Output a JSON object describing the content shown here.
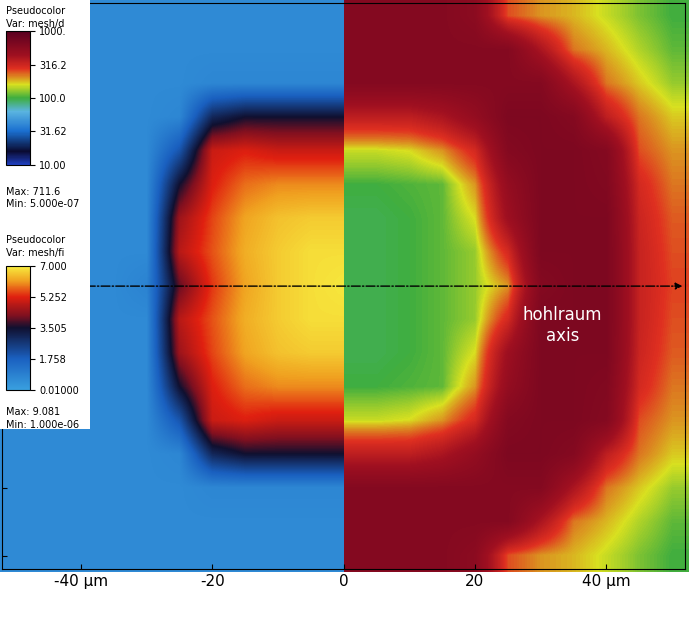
{
  "chart_data": {
    "type": "heatmap",
    "xlim": [
      -52,
      52
    ],
    "ylim": [
      -42,
      42
    ],
    "xticks": [
      {
        "value": -40,
        "label": "-40 µm"
      },
      -20,
      0,
      20,
      {
        "value": 40,
        "label": "40 µm"
      }
    ],
    "yticks": [
      -40,
      -30,
      -20,
      -10,
      0,
      10,
      20,
      30,
      40
    ],
    "tick_labels": "x",
    "annotations": [
      "hohlraum\naxis"
    ],
    "fields": [
      {
        "title": "Pseudocolor",
        "variable": "Var: mesh/d",
        "max": "Max: 711.6",
        "min": "Min: 5.000e-07",
        "log": true,
        "x": [
          0,
          5,
          10,
          15,
          20,
          25,
          30,
          35,
          40,
          45,
          50
        ],
        "y": [
          40,
          35,
          30,
          25,
          20,
          15,
          10,
          5,
          0,
          -5,
          -10,
          -15,
          -20,
          -25,
          -30,
          -35,
          -40
        ],
        "cells": [
          [
            600,
            600,
            600,
            600,
            550,
            250,
            200,
            180,
            150,
            120,
            100
          ],
          [
            600,
            600,
            600,
            600,
            600,
            600,
            400,
            220,
            180,
            140,
            110
          ],
          [
            600,
            600,
            600,
            600,
            600,
            600,
            600,
            400,
            220,
            170,
            130
          ],
          [
            350,
            350,
            350,
            400,
            500,
            650,
            650,
            600,
            350,
            220,
            170
          ],
          [
            150,
            150,
            160,
            200,
            300,
            600,
            650,
            650,
            600,
            250,
            200
          ],
          [
            100,
            100,
            105,
            110,
            200,
            500,
            650,
            650,
            620,
            300,
            220
          ],
          [
            95,
            95,
            100,
            110,
            160,
            450,
            650,
            650,
            650,
            320,
            240
          ],
          [
            95,
            95,
            100,
            110,
            130,
            300,
            650,
            650,
            650,
            330,
            250
          ],
          [
            95,
            95,
            100,
            110,
            130,
            200,
            600,
            650,
            650,
            330,
            260
          ],
          [
            95,
            95,
            100,
            110,
            130,
            300,
            650,
            650,
            650,
            330,
            250
          ],
          [
            95,
            95,
            100,
            110,
            160,
            450,
            650,
            650,
            650,
            320,
            240
          ],
          [
            100,
            100,
            105,
            110,
            200,
            500,
            650,
            650,
            620,
            300,
            220
          ],
          [
            150,
            150,
            160,
            200,
            300,
            600,
            650,
            650,
            600,
            250,
            200
          ],
          [
            350,
            350,
            350,
            400,
            500,
            650,
            650,
            600,
            350,
            220,
            170
          ],
          [
            600,
            600,
            600,
            600,
            600,
            600,
            600,
            400,
            220,
            170,
            130
          ],
          [
            600,
            600,
            600,
            600,
            600,
            600,
            400,
            220,
            180,
            140,
            110
          ],
          [
            600,
            600,
            600,
            600,
            550,
            250,
            200,
            180,
            150,
            120,
            100
          ]
        ],
        "colorbar": {
          "range": [
            10,
            1000
          ],
          "ticks": [
            {
              "value": 10,
              "label": "10.00"
            },
            {
              "value": 31.62,
              "label": "31.62"
            },
            {
              "value": 100,
              "label": "100.0"
            },
            {
              "value": 316.2,
              "label": "316.2"
            },
            {
              "value": 1000,
              "label": "1000."
            }
          ]
        }
      },
      {
        "title": "Pseudocolor",
        "variable": "Var: mesh/fi",
        "max": "Max: 9.081",
        "min": "Min: 1.000e-06",
        "log": false,
        "x": [
          -50,
          -45,
          -40,
          -35,
          -30,
          -25,
          -20,
          -15,
          -10,
          -5,
          0
        ],
        "y": [
          40,
          35,
          30,
          25,
          20,
          15,
          10,
          5,
          0,
          -5,
          -10,
          -15,
          -20,
          -25,
          -30,
          -35,
          -40
        ],
        "cells": [
          [
            0.6,
            0.6,
            0.6,
            0.6,
            0.6,
            0.6,
            0.6,
            0.6,
            0.6,
            0.6,
            0.6
          ],
          [
            0.6,
            0.6,
            0.6,
            0.6,
            0.6,
            0.6,
            0.6,
            0.6,
            0.6,
            0.6,
            0.6
          ],
          [
            0.6,
            0.6,
            0.6,
            0.6,
            0.6,
            0.6,
            0.7,
            0.7,
            0.7,
            0.7,
            0.7
          ],
          [
            0.6,
            0.6,
            0.6,
            0.6,
            0.6,
            0.7,
            3.0,
            3.5,
            3.5,
            3.5,
            3.5
          ],
          [
            0.6,
            0.6,
            0.6,
            0.6,
            0.6,
            2.0,
            5.0,
            5.2,
            5.0,
            5.0,
            5.0
          ],
          [
            0.6,
            0.6,
            0.6,
            0.6,
            0.6,
            3.5,
            5.2,
            5.8,
            6.0,
            6.0,
            6.0
          ],
          [
            0.6,
            0.6,
            0.6,
            0.6,
            0.6,
            4.5,
            5.5,
            6.2,
            6.5,
            6.6,
            6.6
          ],
          [
            0.6,
            0.6,
            0.6,
            0.6,
            0.6,
            4.8,
            5.6,
            6.3,
            6.6,
            6.8,
            6.8
          ],
          [
            0.6,
            0.6,
            0.6,
            0.6,
            0.8,
            4.0,
            5.4,
            6.2,
            6.6,
            6.8,
            6.9
          ],
          [
            0.6,
            0.6,
            0.6,
            0.6,
            0.6,
            4.8,
            5.6,
            6.3,
            6.6,
            6.8,
            6.8
          ],
          [
            0.6,
            0.6,
            0.6,
            0.6,
            0.6,
            4.5,
            5.5,
            6.2,
            6.5,
            6.6,
            6.6
          ],
          [
            0.6,
            0.6,
            0.6,
            0.6,
            0.6,
            3.5,
            5.2,
            5.8,
            6.0,
            6.0,
            6.0
          ],
          [
            0.6,
            0.6,
            0.6,
            0.6,
            0.6,
            2.0,
            5.0,
            5.2,
            5.0,
            5.0,
            5.0
          ],
          [
            0.6,
            0.6,
            0.6,
            0.6,
            0.6,
            0.7,
            3.0,
            3.5,
            3.5,
            3.5,
            3.5
          ],
          [
            0.6,
            0.6,
            0.6,
            0.6,
            0.6,
            0.6,
            0.7,
            0.7,
            0.7,
            0.7,
            0.7
          ],
          [
            0.6,
            0.6,
            0.6,
            0.6,
            0.6,
            0.6,
            0.6,
            0.6,
            0.6,
            0.6,
            0.6
          ],
          [
            0.6,
            0.6,
            0.6,
            0.6,
            0.6,
            0.6,
            0.6,
            0.6,
            0.6,
            0.6,
            0.6
          ]
        ],
        "colorbar": {
          "range": [
            0.01,
            7
          ],
          "ticks": [
            {
              "value": 0.01,
              "label": "0.01000"
            },
            {
              "value": 1.758,
              "label": "1.758"
            },
            {
              "value": 3.505,
              "label": "3.505"
            },
            {
              "value": 5.252,
              "label": "5.252"
            },
            {
              "value": 7,
              "label": "7.000"
            }
          ]
        }
      }
    ]
  }
}
